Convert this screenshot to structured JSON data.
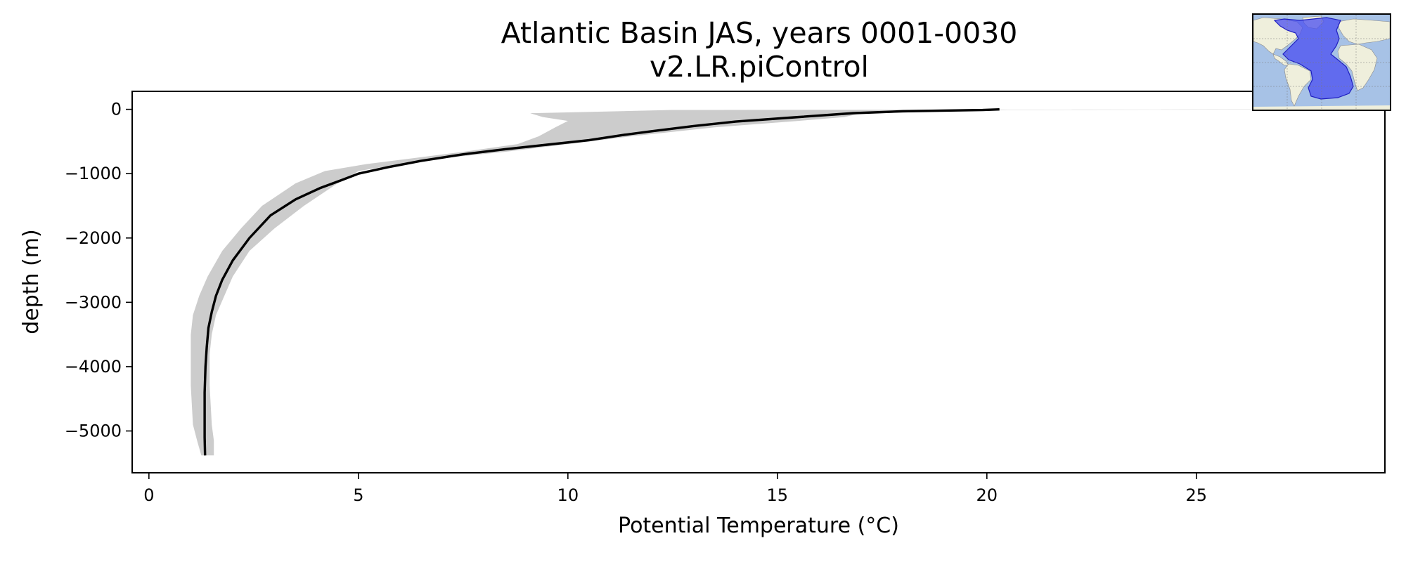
{
  "chart_data": {
    "type": "line",
    "title": "Atlantic Basin JAS, years 0001-0030",
    "subtitle": "v2.LR.piControl",
    "xlabel": "Potential Temperature (°C)",
    "ylabel": "depth (m)",
    "xlim": [
      -0.4,
      29.5
    ],
    "ylim": [
      -5650,
      280
    ],
    "xticks": [
      0,
      5,
      10,
      15,
      20,
      25
    ],
    "yticks": [
      0,
      -1000,
      -2000,
      -3000,
      -4000,
      -5000
    ],
    "xtick_labels": [
      "0",
      "5",
      "10",
      "15",
      "20",
      "25"
    ],
    "ytick_labels": [
      "0",
      "−1000",
      "−2000",
      "−3000",
      "−4000",
      "−5000"
    ],
    "grid": false,
    "colors": {
      "mean_line": "#000000",
      "range_band": "#cccccc",
      "inset_basin": "#4a4ef0",
      "inset_ocean": "#a7c2e6",
      "inset_land": "#efefdc"
    },
    "series": [
      {
        "style": "line",
        "x": [
          20.3,
          19.9,
          18.0,
          16.8,
          15.5,
          14.0,
          13.0,
          12.0,
          11.3,
          10.5,
          9.5,
          8.5,
          7.5,
          6.5,
          5.7,
          5.0,
          4.6,
          4.1,
          3.5,
          2.9,
          2.4,
          2.0,
          1.75,
          1.6,
          1.5,
          1.42,
          1.38,
          1.35,
          1.33,
          1.33,
          1.33,
          1.34
        ],
        "y": [
          0,
          -10,
          -30,
          -60,
          -120,
          -190,
          -260,
          -340,
          -400,
          -480,
          -550,
          -620,
          -700,
          -800,
          -900,
          -1000,
          -1100,
          -1220,
          -1400,
          -1650,
          -2000,
          -2350,
          -2650,
          -2900,
          -3150,
          -3400,
          -3700,
          -4000,
          -4400,
          -4800,
          -5100,
          -5380
        ]
      },
      {
        "style": "band",
        "x_min": [
          26.3,
          12.5,
          9.1,
          9.4,
          10.0,
          9.7,
          9.3,
          8.8,
          7.5,
          6.3,
          5.2,
          4.2,
          3.5,
          2.7,
          2.2,
          1.75,
          1.4,
          1.2,
          1.05,
          1.0,
          1.0,
          1.0,
          1.05,
          1.15,
          1.25
        ],
        "x_max": [
          29.5,
          20.5,
          17.0,
          16.6,
          15.5,
          13.5,
          11.5,
          10.0,
          8.5,
          7.0,
          6.0,
          5.0,
          4.5,
          3.7,
          3.0,
          2.4,
          2.0,
          1.8,
          1.6,
          1.5,
          1.45,
          1.45,
          1.5,
          1.55,
          1.55
        ],
        "y": [
          0,
          -10,
          -60,
          -120,
          -180,
          -280,
          -420,
          -540,
          -660,
          -760,
          -850,
          -960,
          -1150,
          -1500,
          -1850,
          -2200,
          -2600,
          -2900,
          -3200,
          -3500,
          -3800,
          -4300,
          -4900,
          -5150,
          -5380
        ]
      }
    ]
  },
  "inset": {
    "icon": "atlantic-basin-map-icon"
  }
}
